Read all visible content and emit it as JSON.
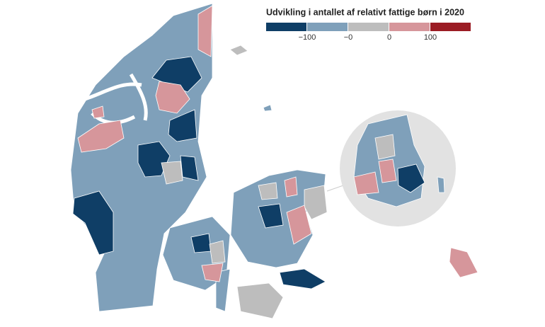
{
  "title": "Udvikling i antallet af relativt fattige børn i 2020",
  "legend": {
    "colors": [
      "#0f3e66",
      "#7fa0ba",
      "#bdbdbd",
      "#d6969b",
      "#9b1c24"
    ],
    "labels": [
      "−100",
      "−0",
      "0",
      "100"
    ]
  }
}
